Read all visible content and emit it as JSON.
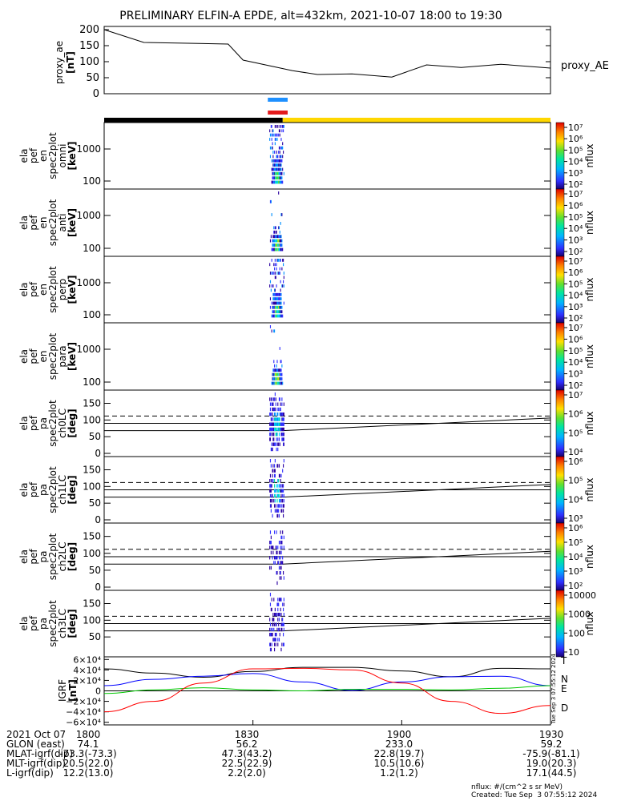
{
  "title": "PRELIMINARY ELFIN-A EPDE, alt=432km, 2021-10-07 18:00 to 19:30",
  "colors": {
    "bar_blue": "#1e90ff",
    "bar_red": "#e31a1c",
    "bar_black": "#000000",
    "bar_yellow": "#ffd700",
    "grf_T": "#000000",
    "grf_N": "#0000ff",
    "grf_E": "#00c800",
    "grf_D": "#ff0000"
  },
  "chart_data": [
    {
      "type": "line",
      "panel": "proxy_ae",
      "ylabel": [
        "proxy_ae",
        "[nT]"
      ],
      "legend": "proxy_AE",
      "yticks": [
        "0",
        "50",
        "100",
        "150",
        "200"
      ],
      "ylim": [
        0,
        210
      ],
      "x_minutes": [
        0,
        8,
        25,
        28,
        38,
        43,
        50,
        58,
        65,
        72,
        80,
        90
      ],
      "values": [
        200,
        160,
        155,
        105,
        72,
        60,
        62,
        52,
        90,
        82,
        92,
        80
      ]
    },
    {
      "type": "heatmap",
      "panel": "en_omni",
      "ylabel": [
        "ela",
        "pef",
        "en",
        "spec2plot",
        "omni",
        "[keV]"
      ],
      "yticks": [
        "100",
        "1000"
      ],
      "colorbar": {
        "label": "nflux",
        "ticks": [
          "10⁷",
          "10⁶",
          "10⁵",
          "10⁴",
          "10³",
          "10²"
        ]
      },
      "activity_minutes": [
        33,
        36
      ]
    },
    {
      "type": "heatmap",
      "panel": "en_anti",
      "ylabel": [
        "ela",
        "pef",
        "en",
        "spec2plot",
        "anti",
        "[keV]"
      ],
      "yticks": [
        "100",
        "1000"
      ],
      "colorbar": {
        "label": "nflux",
        "ticks": [
          "10⁷",
          "10⁶",
          "10⁵",
          "10⁴",
          "10³",
          "10²"
        ]
      },
      "activity_minutes": [
        34,
        35
      ]
    },
    {
      "type": "heatmap",
      "panel": "en_perp",
      "ylabel": [
        "ela",
        "pef",
        "en",
        "spec2plot",
        "perp",
        "[keV]"
      ],
      "yticks": [
        "100",
        "1000"
      ],
      "colorbar": {
        "label": "nflux",
        "ticks": [
          "10⁷",
          "10⁶",
          "10⁵",
          "10⁴",
          "10³",
          "10²"
        ]
      },
      "activity_minutes": [
        33,
        36
      ]
    },
    {
      "type": "heatmap",
      "panel": "en_para",
      "ylabel": [
        "ela",
        "pef",
        "en",
        "spec2plot",
        "para",
        "[keV]"
      ],
      "yticks": [
        "100",
        "1000"
      ],
      "colorbar": {
        "label": "nflux",
        "ticks": [
          "10⁷",
          "10⁶",
          "10⁵",
          "10⁴",
          "10³",
          "10²"
        ]
      },
      "activity_minutes": [
        34,
        36
      ]
    },
    {
      "type": "heatmap",
      "panel": "pa_ch0LC",
      "ylabel": [
        "ela",
        "pef",
        "pa",
        "spec2plot",
        "ch0LC",
        "[deg]"
      ],
      "yticks": [
        "0",
        "50",
        "100",
        "150"
      ],
      "ylim": [
        0,
        180
      ],
      "losscone_deg": [
        68,
        80
      ],
      "antilosscone_deg": [
        112,
        100
      ],
      "colorbar": {
        "label": "nflux",
        "ticks": [
          "10⁷",
          "10⁶",
          "10⁵",
          "10⁴"
        ]
      }
    },
    {
      "type": "heatmap",
      "panel": "pa_ch1LC",
      "ylabel": [
        "ela",
        "pef",
        "pa",
        "spec2plot",
        "ch1LC",
        "[deg]"
      ],
      "yticks": [
        "0",
        "50",
        "100",
        "150"
      ],
      "ylim": [
        0,
        180
      ],
      "losscone_deg": [
        68,
        80
      ],
      "antilosscone_deg": [
        112,
        100
      ],
      "colorbar": {
        "label": "nflux",
        "ticks": [
          "10⁶",
          "10⁵",
          "10⁴",
          "10³"
        ]
      }
    },
    {
      "type": "heatmap",
      "panel": "pa_ch2LC",
      "ylabel": [
        "ela",
        "pef",
        "pa",
        "spec2plot",
        "ch2LC",
        "[deg]"
      ],
      "yticks": [
        "0",
        "50",
        "100",
        "150"
      ],
      "ylim": [
        0,
        180
      ],
      "losscone_deg": [
        68,
        80
      ],
      "antilosscone_deg": [
        112,
        100
      ],
      "colorbar": {
        "label": "nflux",
        "ticks": [
          "10⁶",
          "10⁵",
          "10⁴",
          "10³",
          "10²"
        ]
      }
    },
    {
      "type": "heatmap",
      "panel": "pa_ch3LC",
      "ylabel": [
        "ela",
        "pef",
        "pa",
        "spec2plot",
        "ch3LC",
        "[deg]"
      ],
      "yticks": [
        "50",
        "100",
        "150"
      ],
      "ylim": [
        0,
        180
      ],
      "losscone_deg": [
        68,
        80
      ],
      "antilosscone_deg": [
        112,
        100
      ],
      "colorbar": {
        "label": "nflux",
        "ticks": [
          "10000",
          "1000",
          "100",
          "10"
        ]
      }
    },
    {
      "type": "line",
      "panel": "igrf",
      "ylabel": [
        "IGRF",
        "[nT]"
      ],
      "yticks": [
        "6×10⁴",
        "4×10⁴",
        "2×10⁴",
        "0",
        "−2×10⁴",
        "−4×10⁴",
        "−6×10⁴"
      ],
      "ylim": [
        -65000,
        65000
      ],
      "series": [
        {
          "name": "T",
          "x_minutes": [
            0,
            10,
            20,
            30,
            40,
            50,
            60,
            70,
            80,
            90
          ],
          "values": [
            42000,
            34000,
            26000,
            37000,
            45000,
            45000,
            38000,
            27000,
            43000,
            42000
          ]
        },
        {
          "name": "N",
          "x_minutes": [
            0,
            10,
            20,
            30,
            40,
            50,
            60,
            70,
            80,
            90
          ],
          "values": [
            10000,
            22000,
            28000,
            33000,
            17000,
            1000,
            17000,
            27000,
            28000,
            10000
          ]
        },
        {
          "name": "E",
          "x_minutes": [
            0,
            10,
            20,
            30,
            40,
            50,
            60,
            70,
            80,
            90
          ],
          "values": [
            -5000,
            2000,
            6000,
            2000,
            0,
            3000,
            3000,
            2000,
            5000,
            10000
          ]
        },
        {
          "name": "D",
          "x_minutes": [
            0,
            10,
            20,
            30,
            40,
            50,
            60,
            70,
            80,
            90
          ],
          "values": [
            -40000,
            -20000,
            15000,
            42000,
            43000,
            40000,
            15000,
            -20000,
            -43000,
            -28000
          ]
        }
      ]
    }
  ],
  "igrf_legend": [
    "T",
    "N",
    "E",
    "D"
  ],
  "side_stamp": "Tue Sep  3 07:55:12 2024",
  "xaxis": {
    "row_labels": [
      "2021 Oct 07",
      "GLON (east)",
      "MLAT-igrf(dip)",
      "MLT-igrf(dip)",
      "L-igrf(dip)"
    ],
    "columns": [
      {
        "values": [
          "1800",
          "74.1",
          "-73.3(-73.3)",
          "20.5(22.0)",
          "12.2(13.0)"
        ]
      },
      {
        "values": [
          "1830",
          "56.2",
          "47.3(43.2)",
          "22.5(22.9)",
          "2.2(2.0)"
        ]
      },
      {
        "values": [
          "1900",
          "233.0",
          "22.8(19.7)",
          "10.5(10.6)",
          "1.2(1.2)"
        ]
      },
      {
        "values": [
          "1930",
          "59.2",
          "-75.9(-81.1)",
          "19.0(20.3)",
          "17.1(44.5)"
        ]
      }
    ]
  },
  "credits": {
    "units": "nflux: #/(cm^2 s sr MeV)",
    "created": "Created: Tue Sep  3 07:55:12 2024"
  }
}
